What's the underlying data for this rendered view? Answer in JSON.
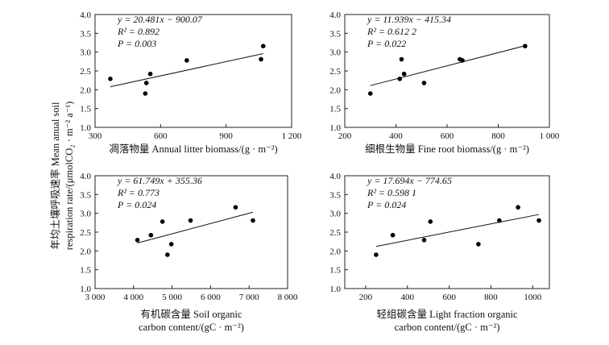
{
  "y_axis_label_line1": "年均土壤呼吸速率 Mean anual soil",
  "y_axis_label_line2": "respiration rate/(μmolCO₂ · m⁻² a⁻¹)",
  "chart_data": [
    {
      "type": "scatter",
      "xlabel_lines": [
        "凋落物量 Annual litter biomass/(g · m⁻²)"
      ],
      "ylabel": "年均土壤呼吸速率 Mean anual soil respiration rate/(μmolCO₂ · m⁻² a⁻¹)",
      "xlim": [
        300,
        1200
      ],
      "ylim": [
        1.0,
        4.0
      ],
      "xticks": [
        300,
        600,
        900,
        1200
      ],
      "xtick_labels": [
        "300",
        "600",
        "900",
        "1 200"
      ],
      "yticks": [
        1.0,
        1.5,
        2.0,
        2.5,
        3.0,
        3.5,
        4.0
      ],
      "ytick_labels": [
        "1.0",
        "1.5",
        "2.0",
        "2.5",
        "3.0",
        "3.5",
        "4.0"
      ],
      "points": [
        [
          370,
          2.29
        ],
        [
          530,
          1.9
        ],
        [
          535,
          2.18
        ],
        [
          553,
          2.42
        ],
        [
          720,
          2.78
        ],
        [
          1060,
          2.81
        ],
        [
          1070,
          3.16
        ]
      ],
      "fit": {
        "x": [
          370,
          1070
        ],
        "y": [
          2.08,
          2.96
        ]
      },
      "annotations": [
        "y = 20.481x − 900.07",
        "R² = 0.892",
        "P = 0.003"
      ]
    },
    {
      "type": "scatter",
      "xlabel_lines": [
        "细根生物量 Fine root biomass/(g · m⁻²)"
      ],
      "ylabel": "年均土壤呼吸速率 Mean anual soil respiration rate/(μmolCO₂ · m⁻² a⁻¹)",
      "xlim": [
        200,
        1000
      ],
      "ylim": [
        1.0,
        4.0
      ],
      "xticks": [
        200,
        400,
        600,
        800,
        1000
      ],
      "xtick_labels": [
        "200",
        "400",
        "600",
        "800",
        "1 000"
      ],
      "yticks": [
        1.0,
        1.5,
        2.0,
        2.5,
        3.0,
        3.5,
        4.0
      ],
      "ytick_labels": [
        "1.0",
        "1.5",
        "2.0",
        "2.5",
        "3.0",
        "3.5",
        "4.0"
      ],
      "points": [
        [
          300,
          1.9
        ],
        [
          415,
          2.29
        ],
        [
          422,
          2.81
        ],
        [
          432,
          2.42
        ],
        [
          510,
          2.18
        ],
        [
          650,
          2.81
        ],
        [
          660,
          2.78
        ],
        [
          905,
          3.16
        ]
      ],
      "fit": {
        "x": [
          300,
          905
        ],
        "y": [
          2.11,
          3.17
        ]
      },
      "annotations": [
        "y = 11.939x − 415.34",
        "R² = 0.612 2",
        "P = 0.022"
      ]
    },
    {
      "type": "scatter",
      "xlabel_lines": [
        "有机碳含量 Soil organic",
        "carbon content/(gC · m⁻²)"
      ],
      "ylabel": "年均土壤呼吸速率 Mean anual soil respiration rate/(μmolCO₂ · m⁻² a⁻¹)",
      "xlim": [
        3000,
        8000
      ],
      "ylim": [
        1.0,
        4.0
      ],
      "xticks": [
        3000,
        4000,
        5000,
        6000,
        7000,
        8000
      ],
      "xtick_labels": [
        "3 000",
        "4 000",
        "5 000",
        "6 000",
        "7 000",
        "8 000"
      ],
      "yticks": [
        1.0,
        1.5,
        2.0,
        2.5,
        3.0,
        3.5,
        4.0
      ],
      "ytick_labels": [
        "1.0",
        "1.5",
        "2.0",
        "2.5",
        "3.0",
        "3.5",
        "4.0"
      ],
      "points": [
        [
          4100,
          2.29
        ],
        [
          4450,
          2.42
        ],
        [
          4750,
          2.78
        ],
        [
          4880,
          1.9
        ],
        [
          4980,
          2.18
        ],
        [
          5480,
          2.81
        ],
        [
          6650,
          3.16
        ],
        [
          7100,
          2.81
        ]
      ],
      "fit": {
        "x": [
          4100,
          7100
        ],
        "y": [
          2.21,
          3.03
        ]
      },
      "annotations": [
        "y = 61.749x + 355.36",
        "R² = 0.773",
        "P = 0.024"
      ]
    },
    {
      "type": "scatter",
      "xlabel_lines": [
        "轻组碳含量 Light fraction organic",
        "carbon content/(gC · m⁻²)"
      ],
      "ylabel": "年均土壤呼吸速率 Mean anual soil respiration rate/(μmolCO₂ · m⁻² a⁻¹)",
      "xlim": [
        100,
        1080
      ],
      "ylim": [
        1.0,
        4.0
      ],
      "xticks": [
        200,
        400,
        600,
        800,
        1000
      ],
      "xtick_labels": [
        "200",
        "400",
        "600",
        "800",
        "1000"
      ],
      "yticks": [
        1.0,
        1.5,
        2.0,
        2.5,
        3.0,
        3.5,
        4.0
      ],
      "ytick_labels": [
        "1.0",
        "1.5",
        "2.0",
        "2.5",
        "3.0",
        "3.5",
        "4.0"
      ],
      "points": [
        [
          250,
          1.9
        ],
        [
          330,
          2.42
        ],
        [
          480,
          2.29
        ],
        [
          510,
          2.78
        ],
        [
          740,
          2.18
        ],
        [
          840,
          2.81
        ],
        [
          930,
          3.16
        ],
        [
          1030,
          2.81
        ]
      ],
      "fit": {
        "x": [
          250,
          1030
        ],
        "y": [
          2.12,
          2.97
        ]
      },
      "annotations": [
        "y = 17.694x − 774.65",
        "R² = 0.598 1",
        "P = 0.024"
      ]
    }
  ]
}
